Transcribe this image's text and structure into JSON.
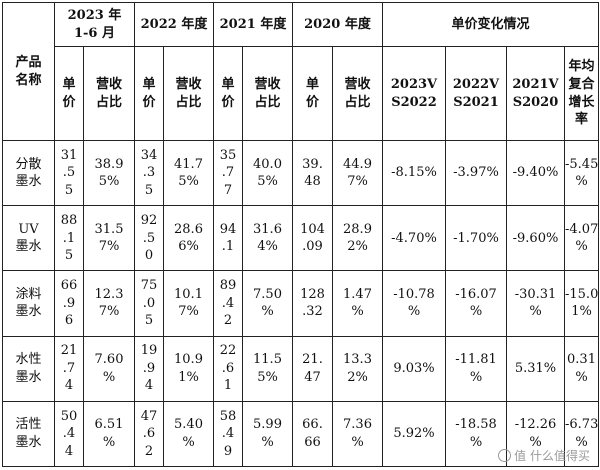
{
  "header": {
    "product_name": "产品\n名称",
    "periods": [
      "2023 年\n1-6 月",
      "2022 年度",
      "2021 年度",
      "2020 年度"
    ],
    "change_group": "单价变化情况",
    "unit_price": "单\n价",
    "revenue_share": "营收\n占比",
    "change_cols": [
      "2023V\nS2022",
      "2022V\nS2021",
      "2021V\nS2020",
      "年均\n复合\n增长\n率"
    ]
  },
  "rows": [
    {
      "name": "分散\n墨水",
      "cells": [
        "31\n.5\n5",
        "38.9\n5%",
        "34\n.3\n5",
        "41.7\n5%",
        "35\n.7\n7",
        "40.0\n5%",
        "39.\n48",
        "44.9\n7%"
      ],
      "changes": [
        "-8.15%",
        "-3.97%",
        "-9.40%",
        "-5.45\n%"
      ]
    },
    {
      "name": "UV\n墨水",
      "cells": [
        "88\n.1\n5",
        "31.5\n7%",
        "92\n.5\n0",
        "28.6\n6%",
        "94\n.1",
        "31.6\n4%",
        "104\n.09",
        "28.9\n2%"
      ],
      "changes": [
        "-4.70%",
        "-1.70%",
        "-9.60%",
        "-4.07\n%"
      ]
    },
    {
      "name": "涂料\n墨水",
      "cells": [
        "66\n.9\n6",
        "12.3\n7%",
        "75\n.0\n5",
        "10.1\n7%",
        "89\n.4\n2",
        "7.50\n%",
        "128\n.32",
        "1.47\n%"
      ],
      "changes": [
        "-10.78\n%",
        "-16.07\n%",
        "-30.31\n%",
        "-15.0\n1%"
      ]
    },
    {
      "name": "水性\n墨水",
      "cells": [
        "21\n.7\n4",
        "7.60\n%",
        "19\n.9\n4",
        "10.9\n1%",
        "22\n.6\n1",
        "11.5\n5%",
        "21.\n47",
        "13.3\n2%"
      ],
      "changes": [
        "9.03%",
        "-11.81\n%",
        "5.31%",
        "0.31\n%"
      ]
    },
    {
      "name": "活性\n墨水",
      "cells": [
        "50\n.4\n4",
        "6.51\n%",
        "47\n.6\n2",
        "5.40\n%",
        "58\n.4\n9",
        "5.99\n%",
        "66.\n66",
        "7.36\n%"
      ],
      "changes": [
        "5.92%",
        "-18.58\n%",
        "-12.26\n%",
        "-6.73\n%"
      ]
    }
  ],
  "watermark": "值 什么值得买"
}
